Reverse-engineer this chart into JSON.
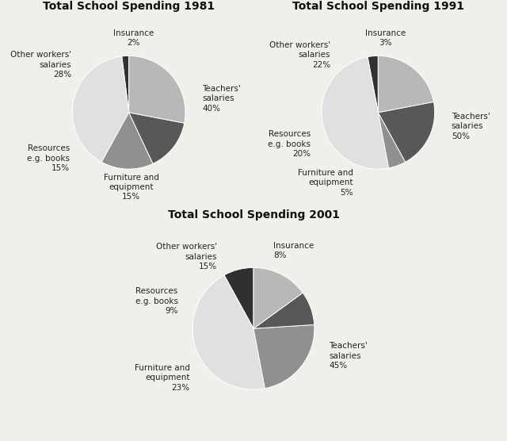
{
  "charts": [
    {
      "title": "Total School Spending 1981",
      "labels": [
        "Insurance",
        "Teachers'\nsalaries",
        "Furniture and\nequipment",
        "Resources\ne.g. books",
        "Other workers'\nsalaries"
      ],
      "pct_labels": [
        "2%",
        "40%",
        "15%",
        "15%",
        "28%"
      ],
      "values": [
        2,
        40,
        15,
        15,
        28
      ],
      "colors": [
        "#303030",
        "#e0e0e0",
        "#909090",
        "#585858",
        "#b8b8b8"
      ],
      "startangle": 90
    },
    {
      "title": "Total School Spending 1991",
      "labels": [
        "Insurance",
        "Teachers'\nsalaries",
        "Furniture and\nequipment",
        "Resources\ne.g. books",
        "Other workers'\nsalaries"
      ],
      "pct_labels": [
        "3%",
        "50%",
        "5%",
        "20%",
        "22%"
      ],
      "values": [
        3,
        50,
        5,
        20,
        22
      ],
      "colors": [
        "#303030",
        "#e0e0e0",
        "#909090",
        "#585858",
        "#b8b8b8"
      ],
      "startangle": 90
    },
    {
      "title": "Total School Spending 2001",
      "labels": [
        "Insurance",
        "Teachers'\nsalaries",
        "Furniture and\nequipment",
        "Resources\ne.g. books",
        "Other workers'\nsalaries"
      ],
      "pct_labels": [
        "8%",
        "45%",
        "23%",
        "9%",
        "15%"
      ],
      "values": [
        8,
        45,
        23,
        9,
        15
      ],
      "colors": [
        "#303030",
        "#e0e0e0",
        "#909090",
        "#585858",
        "#b8b8b8"
      ],
      "startangle": 90
    }
  ],
  "bg_color": "#f0f0eb",
  "title_fontsize": 10,
  "label_fontsize": 7.5
}
